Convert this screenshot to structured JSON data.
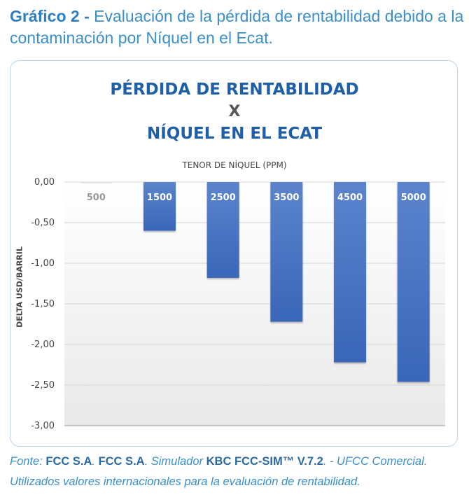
{
  "caption": {
    "prefix": "Gráfico 2 -",
    "text": "Evaluación de la pérdida de rentabilidad debido a la contaminación por Níquel en el Ecat."
  },
  "source": {
    "label": "Fonte:",
    "org1": "FCC S.A",
    "sep1": ".",
    "org2": "FCC S.A",
    "sep2": ".",
    "simulador": "Simulador",
    "sim_name": "KBC FCC-SIM™  V.7.2",
    "rest": ". - UFCC Comercial.",
    "line2": "Utilizados valores internacionales para la evaluación de rentabilidad."
  },
  "chart_data": {
    "type": "bar",
    "title_lines": [
      "PÉRDIDA DE RENTABILIDAD",
      "X",
      "NÍQUEL EN EL ECAT"
    ],
    "xlabel": "TENOR DE NÍQUEL (PPM)",
    "ylabel": "DELTA USD/BARRIL",
    "categories": [
      "500",
      "1500",
      "2500",
      "3500",
      "4500",
      "5000"
    ],
    "values": [
      0.0,
      -0.6,
      -1.18,
      -1.72,
      -2.22,
      -2.46
    ],
    "ylim": [
      -3.0,
      0.0
    ],
    "yticks": [
      "0,00",
      "-0,50",
      "-1,00",
      "-1,50",
      "-2,00",
      "-2,50",
      "-3,00"
    ],
    "ytick_values": [
      0,
      -0.5,
      -1.0,
      -1.5,
      -2.0,
      -2.5,
      -3.0
    ],
    "grid": true,
    "bar_color": "#3a66b8",
    "bar_color_light": "#5b84cc"
  }
}
